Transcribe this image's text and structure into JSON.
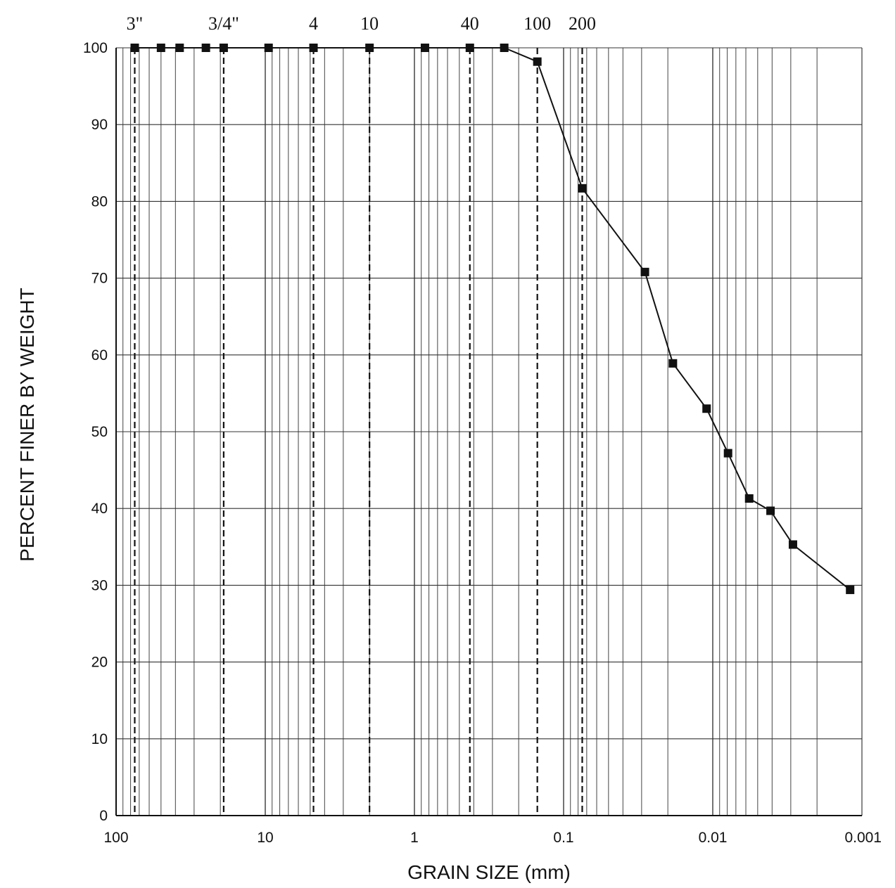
{
  "chart_data": {
    "type": "scatter",
    "title": "",
    "xlabel": "GRAIN SIZE (mm)",
    "ylabel": "PERCENT FINER BY WEIGHT",
    "x_scale": "log",
    "x_reversed": true,
    "xlim": [
      100,
      0.001
    ],
    "ylim": [
      0,
      100
    ],
    "x_tick_labels": [
      {
        "value": 100,
        "label": "100"
      },
      {
        "value": 10,
        "label": "10"
      },
      {
        "value": 1,
        "label": "1"
      },
      {
        "value": 0.1,
        "label": "0.1"
      },
      {
        "value": 0.01,
        "label": "0.01"
      },
      {
        "value": 0.001,
        "label": "0.001"
      }
    ],
    "y_ticks": [
      0,
      10,
      20,
      30,
      40,
      50,
      60,
      70,
      80,
      90,
      100
    ],
    "grid": true,
    "sieve_markers": [
      {
        "label": "3\"",
        "size": 75
      },
      {
        "label": "3/4\"",
        "size": 19
      },
      {
        "label": "4",
        "size": 4.75
      },
      {
        "label": "10",
        "size": 2
      },
      {
        "label": "40",
        "size": 0.425
      },
      {
        "label": "100",
        "size": 0.15
      },
      {
        "label": "200",
        "size": 0.075
      }
    ],
    "series": [
      {
        "x": [
          75,
          50,
          37.5,
          25,
          19,
          9.5,
          4.75,
          2,
          0.85,
          0.425,
          0.25,
          0.15,
          0.075,
          0.0285,
          0.0185,
          0.011,
          0.0079,
          0.0057,
          0.0041,
          0.0029,
          0.0012
        ],
        "y": [
          100,
          100,
          100,
          100,
          100,
          100,
          100,
          100,
          100,
          100,
          100,
          98.2,
          81.7,
          70.8,
          58.9,
          53.0,
          47.2,
          41.3,
          39.7,
          35.3,
          29.4
        ]
      }
    ]
  }
}
